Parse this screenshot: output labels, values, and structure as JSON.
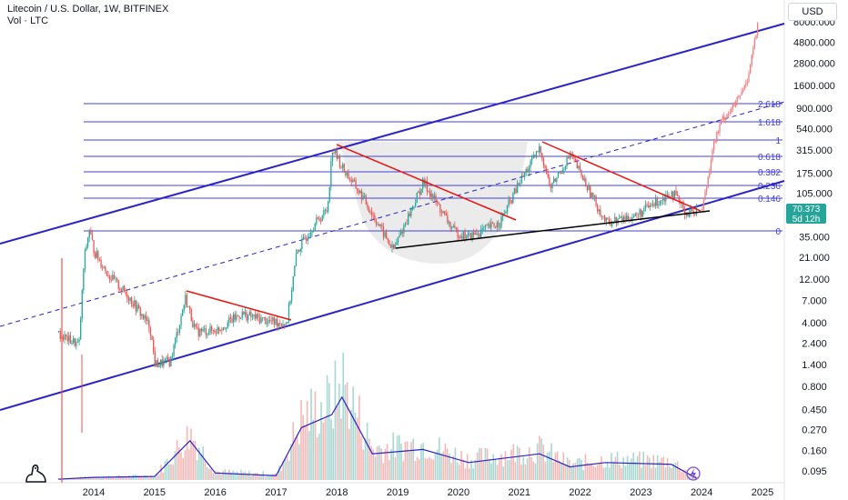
{
  "header": {
    "symbol_line": "Litecoin / U.S. Dollar, 1W, BITFINEX",
    "vol_label": "Vol · LTC"
  },
  "currency_button": "USD",
  "current_price": {
    "value": "70.373",
    "countdown": "5d 12h"
  },
  "colors": {
    "channel": "#2b24c4",
    "fib": "#4340d6",
    "trend_red": "#e8140f",
    "support": "#000000",
    "up": "#26a69a",
    "down": "#ef5350",
    "projection": "#f27c7c",
    "volume_line": "#2b24c4",
    "price_tag": "#26a69a"
  },
  "chart_data": {
    "type": "line",
    "x_ticks": [
      "2014",
      "2015",
      "2016",
      "2017",
      "2018",
      "2019",
      "2020",
      "2021",
      "2022",
      "2023",
      "2024",
      "2025"
    ],
    "y_scale": "log",
    "y_ticks": [
      "8000.000",
      "4800.000",
      "2800.000",
      "1600.000",
      "900.000",
      "540.000",
      "315.000",
      "175.000",
      "105.000",
      "35.000",
      "21.000",
      "12.000",
      "7.000",
      "4.000",
      "2.400",
      "1.400",
      "0.800",
      "0.450",
      "0.270",
      "0.160",
      "0.095"
    ],
    "fib_levels": [
      "2.618",
      "1.618",
      "1",
      "0.618",
      "0.382",
      "0.236",
      "0.146",
      "0"
    ],
    "price_series": [
      {
        "date": "2013-06",
        "price": 3.0
      },
      {
        "date": "2013-08",
        "price": 2.6
      },
      {
        "date": "2013-10",
        "price": 2.3
      },
      {
        "date": "2013-11",
        "price": 20
      },
      {
        "date": "2013-12",
        "price": 42
      },
      {
        "date": "2014-01",
        "price": 24
      },
      {
        "date": "2014-04",
        "price": 13
      },
      {
        "date": "2014-08",
        "price": 7.5
      },
      {
        "date": "2014-12",
        "price": 3.6
      },
      {
        "date": "2015-01",
        "price": 1.4
      },
      {
        "date": "2015-04",
        "price": 1.5
      },
      {
        "date": "2015-07",
        "price": 7.5
      },
      {
        "date": "2015-09",
        "price": 3.2
      },
      {
        "date": "2016-01",
        "price": 3.3
      },
      {
        "date": "2016-06",
        "price": 5.0
      },
      {
        "date": "2016-12",
        "price": 4.1
      },
      {
        "date": "2017-03",
        "price": 4.0
      },
      {
        "date": "2017-05",
        "price": 24
      },
      {
        "date": "2017-08",
        "price": 45
      },
      {
        "date": "2017-11",
        "price": 70
      },
      {
        "date": "2017-12",
        "price": 330
      },
      {
        "date": "2018-02",
        "price": 200
      },
      {
        "date": "2018-06",
        "price": 95
      },
      {
        "date": "2018-12",
        "price": 25
      },
      {
        "date": "2019-06",
        "price": 140
      },
      {
        "date": "2019-12",
        "price": 40
      },
      {
        "date": "2020-03",
        "price": 35
      },
      {
        "date": "2020-09",
        "price": 50
      },
      {
        "date": "2021-01",
        "price": 140
      },
      {
        "date": "2021-05",
        "price": 330
      },
      {
        "date": "2021-07",
        "price": 120
      },
      {
        "date": "2021-11",
        "price": 280
      },
      {
        "date": "2022-06",
        "price": 50
      },
      {
        "date": "2022-12",
        "price": 60
      },
      {
        "date": "2023-07",
        "price": 110
      },
      {
        "date": "2023-10",
        "price": 63
      },
      {
        "date": "2023-12",
        "price": 70.373
      }
    ],
    "projection_series": [
      {
        "date": "2024-01",
        "price": 72
      },
      {
        "date": "2024-02",
        "price": 140
      },
      {
        "date": "2024-03",
        "price": 330
      },
      {
        "date": "2024-05",
        "price": 700
      },
      {
        "date": "2024-07",
        "price": 900
      },
      {
        "date": "2024-09",
        "price": 1400
      },
      {
        "date": "2024-10",
        "price": 2000
      },
      {
        "date": "2024-11",
        "price": 4000
      },
      {
        "date": "2024-12",
        "price": 7500
      }
    ],
    "volume_series": [
      {
        "date": "2013-06",
        "v": 0.01
      },
      {
        "date": "2014-01",
        "v": 0.03
      },
      {
        "date": "2015-01",
        "v": 0.04
      },
      {
        "date": "2015-08",
        "v": 0.45
      },
      {
        "date": "2016-01",
        "v": 0.08
      },
      {
        "date": "2017-01",
        "v": 0.05
      },
      {
        "date": "2017-06",
        "v": 0.6
      },
      {
        "date": "2017-12",
        "v": 0.75
      },
      {
        "date": "2018-02",
        "v": 0.95
      },
      {
        "date": "2018-08",
        "v": 0.3
      },
      {
        "date": "2019-06",
        "v": 0.35
      },
      {
        "date": "2020-03",
        "v": 0.2
      },
      {
        "date": "2021-05",
        "v": 0.3
      },
      {
        "date": "2021-11",
        "v": 0.15
      },
      {
        "date": "2022-06",
        "v": 0.2
      },
      {
        "date": "2023-07",
        "v": 0.18
      },
      {
        "date": "2023-12",
        "v": 0.02
      }
    ],
    "legend_placement": "none",
    "grid": false
  }
}
